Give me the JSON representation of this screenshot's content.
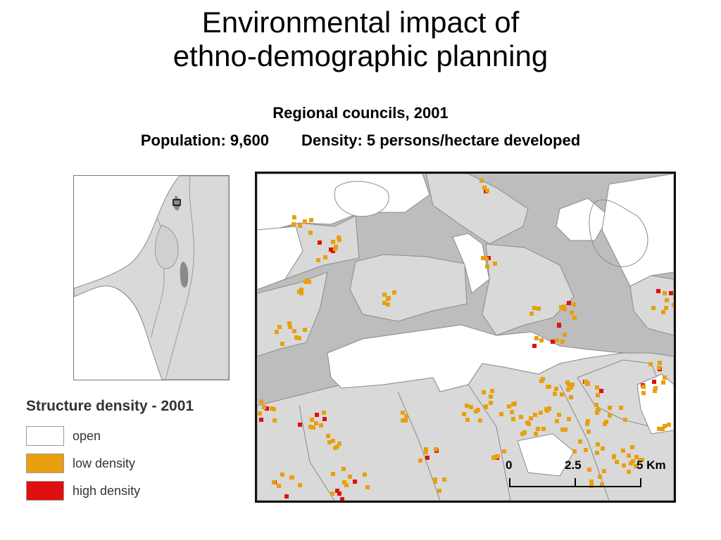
{
  "title": {
    "line1": "Environmental impact of",
    "line2": "ethno-demographic planning"
  },
  "subtitle": "Regional councils, 2001",
  "stats": {
    "population": "Population: 9,600",
    "density": "Density: 5 persons/hectare developed"
  },
  "legend": {
    "title": "Structure density - 2001",
    "items": [
      {
        "label": "open",
        "color": "#ffffff"
      },
      {
        "label": "low density",
        "color": "#e8a010"
      },
      {
        "label": "high density",
        "color": "#e01010"
      }
    ]
  },
  "scale_bar": {
    "ticks": [
      "0",
      "2.5",
      "5 Km"
    ]
  },
  "colors": {
    "developed_area": "#d9d9d9",
    "unplanned_area": "#bdbdbd",
    "low_density": "#e8a010",
    "high_density": "#e01010",
    "boundary": "#8a8a8a"
  }
}
